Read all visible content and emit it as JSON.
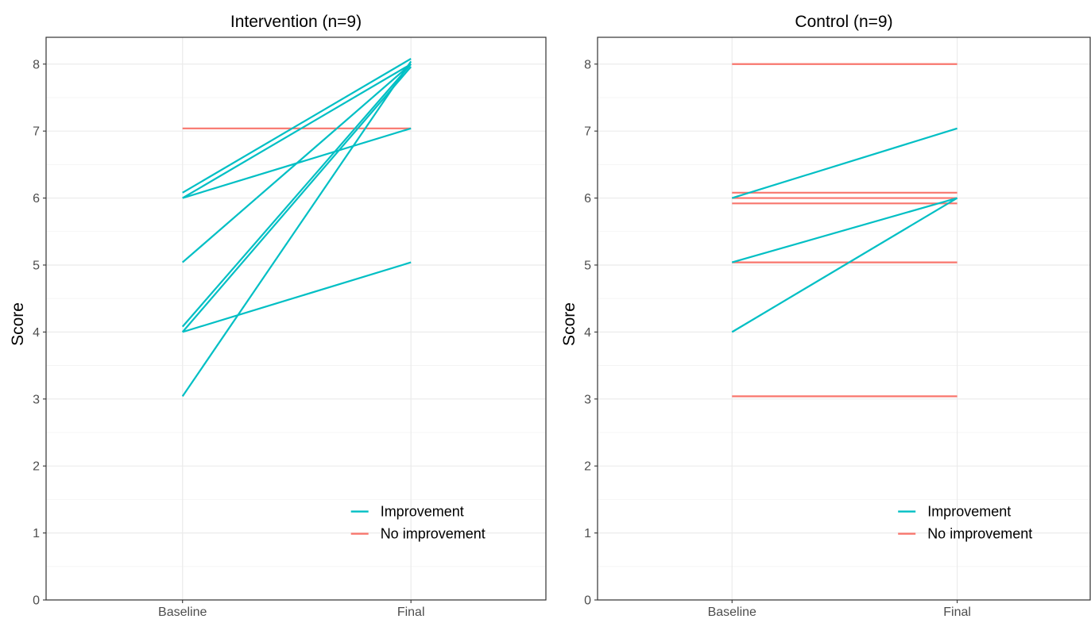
{
  "chart_data": [
    {
      "type": "line",
      "title": "Intervention (n=9)",
      "xlabel": "",
      "ylabel": "Score",
      "x": [
        "Baseline",
        "Final"
      ],
      "ylim": [
        0,
        8.4
      ],
      "yticks": [
        0,
        1,
        2,
        3,
        4,
        5,
        6,
        7,
        8
      ],
      "grid": true,
      "legend": {
        "position": "bottom-right",
        "entries": [
          {
            "label": "Improvement",
            "color": "#00BFC4"
          },
          {
            "label": "No improvement",
            "color": "#F8766D"
          }
        ]
      },
      "lines": [
        {
          "group": "No improvement",
          "values": [
            7.04,
            7.04
          ]
        },
        {
          "group": "Improvement",
          "values": [
            6.08,
            8.08
          ]
        },
        {
          "group": "Improvement",
          "values": [
            6.0,
            8.0
          ]
        },
        {
          "group": "Improvement",
          "values": [
            6.0,
            7.04
          ]
        },
        {
          "group": "Improvement",
          "values": [
            5.04,
            8.0
          ]
        },
        {
          "group": "Improvement",
          "values": [
            4.08,
            8.0
          ]
        },
        {
          "group": "Improvement",
          "values": [
            4.0,
            7.96
          ]
        },
        {
          "group": "Improvement",
          "values": [
            4.0,
            5.04
          ]
        },
        {
          "group": "Improvement",
          "values": [
            3.04,
            8.04
          ]
        }
      ]
    },
    {
      "type": "line",
      "title": "Control (n=9)",
      "xlabel": "",
      "ylabel": "Score",
      "x": [
        "Baseline",
        "Final"
      ],
      "ylim": [
        0,
        8.4
      ],
      "yticks": [
        0,
        1,
        2,
        3,
        4,
        5,
        6,
        7,
        8
      ],
      "grid": true,
      "legend": {
        "position": "bottom-right",
        "entries": [
          {
            "label": "Improvement",
            "color": "#00BFC4"
          },
          {
            "label": "No improvement",
            "color": "#F8766D"
          }
        ]
      },
      "lines": [
        {
          "group": "No improvement",
          "values": [
            8.0,
            8.0
          ]
        },
        {
          "group": "No improvement",
          "values": [
            6.08,
            6.08
          ]
        },
        {
          "group": "No improvement",
          "values": [
            6.0,
            6.0
          ]
        },
        {
          "group": "No improvement",
          "values": [
            5.92,
            5.92
          ]
        },
        {
          "group": "No improvement",
          "values": [
            5.04,
            5.04
          ]
        },
        {
          "group": "No improvement",
          "values": [
            3.04,
            3.04
          ]
        },
        {
          "group": "Improvement",
          "values": [
            6.0,
            7.04
          ]
        },
        {
          "group": "Improvement",
          "values": [
            5.04,
            6.0
          ]
        },
        {
          "group": "Improvement",
          "values": [
            4.0,
            6.0
          ]
        }
      ]
    }
  ]
}
